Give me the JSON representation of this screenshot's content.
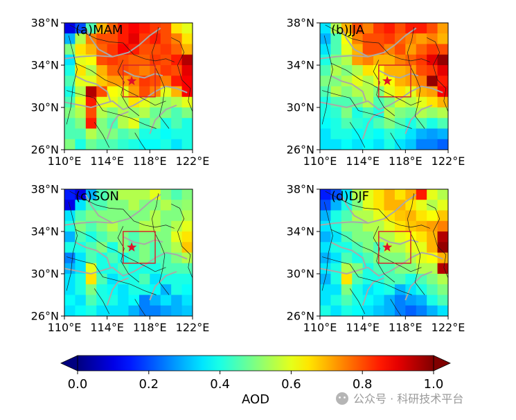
{
  "chart_data": {
    "type": "heatmap",
    "variable": "AOD",
    "colorbar": {
      "label": "AOD",
      "min": 0.0,
      "max": 1.0,
      "ticks": [
        "0.0",
        "0.2",
        "0.4",
        "0.6",
        "0.8",
        "1.0"
      ],
      "colormap": "jet"
    },
    "x_ticks": [
      "110°E",
      "114°E",
      "118°E",
      "122°E"
    ],
    "y_ticks": [
      "38°N",
      "34°N",
      "30°N",
      "26°N"
    ],
    "lon_range": [
      110,
      122
    ],
    "lat_range": [
      26,
      38
    ],
    "grid_resolution_deg": 1,
    "site_marker": {
      "lon": 116.3,
      "lat": 32.5,
      "symbol": "star"
    },
    "study_box": {
      "lon": [
        115.5,
        118.5
      ],
      "lat": [
        31.0,
        34.0
      ]
    },
    "panels": [
      {
        "title": "(a)MAM",
        "aod": [
          [
            0.1,
            0.2,
            0.45,
            0.7,
            0.78,
            0.85,
            0.88,
            0.85,
            0.82,
            0.8,
            0.65,
            0.6
          ],
          [
            0.3,
            0.55,
            0.75,
            0.8,
            0.8,
            0.85,
            0.9,
            0.82,
            0.85,
            0.8,
            0.75,
            0.65
          ],
          [
            0.5,
            0.65,
            0.7,
            0.78,
            0.82,
            0.88,
            0.85,
            0.8,
            0.8,
            0.82,
            0.78,
            0.7
          ],
          [
            0.35,
            0.6,
            0.62,
            0.8,
            0.82,
            0.8,
            0.78,
            0.78,
            0.82,
            0.8,
            0.85,
            0.95
          ],
          [
            0.4,
            0.65,
            0.55,
            0.7,
            0.78,
            0.8,
            0.78,
            0.75,
            0.78,
            0.82,
            0.8,
            0.9
          ],
          [
            0.45,
            0.6,
            0.6,
            0.68,
            0.72,
            0.72,
            0.75,
            0.82,
            0.8,
            0.75,
            0.85,
            0.88
          ],
          [
            0.4,
            0.55,
            0.95,
            0.8,
            0.62,
            0.6,
            0.72,
            0.8,
            0.75,
            0.6,
            0.7,
            0.88
          ],
          [
            0.45,
            0.6,
            0.85,
            0.6,
            0.6,
            0.55,
            0.65,
            0.6,
            0.55,
            0.52,
            0.55,
            0.6
          ],
          [
            0.5,
            0.55,
            0.8,
            0.55,
            0.5,
            0.55,
            0.52,
            0.55,
            0.48,
            0.5,
            0.45,
            0.5
          ],
          [
            0.45,
            0.5,
            0.85,
            0.5,
            0.45,
            0.55,
            0.6,
            0.45,
            0.5,
            0.4,
            0.45,
            0.4
          ],
          [
            0.45,
            0.45,
            0.55,
            0.5,
            0.5,
            0.45,
            0.48,
            0.4,
            0.4,
            0.38,
            0.4,
            0.4
          ],
          [
            0.5,
            0.4,
            0.48,
            0.45,
            0.45,
            0.42,
            0.4,
            0.38,
            0.38,
            0.4,
            0.35,
            0.4
          ]
        ]
      },
      {
        "title": "(b)JJA",
        "aod": [
          [
            0.35,
            0.55,
            0.7,
            0.8,
            0.75,
            0.82,
            0.85,
            0.8,
            0.85,
            0.85,
            0.8,
            0.72
          ],
          [
            0.3,
            0.45,
            0.62,
            0.75,
            0.8,
            0.8,
            0.82,
            0.78,
            0.75,
            0.72,
            0.75,
            0.7
          ],
          [
            0.35,
            0.45,
            0.6,
            0.7,
            0.8,
            0.8,
            0.75,
            0.8,
            0.72,
            0.78,
            0.82,
            0.8
          ],
          [
            0.4,
            0.5,
            0.55,
            0.72,
            0.75,
            0.7,
            0.7,
            0.75,
            0.78,
            0.82,
            0.9,
            0.98
          ],
          [
            0.45,
            0.55,
            0.5,
            0.55,
            0.65,
            0.62,
            0.7,
            0.7,
            0.72,
            0.8,
            0.82,
            0.9
          ],
          [
            0.5,
            0.5,
            0.55,
            0.6,
            0.55,
            0.6,
            0.62,
            0.7,
            0.72,
            0.75,
            0.98,
            0.85
          ],
          [
            0.45,
            0.55,
            0.5,
            0.55,
            0.55,
            0.5,
            0.6,
            0.65,
            0.6,
            0.7,
            0.72,
            0.88
          ],
          [
            0.4,
            0.45,
            0.45,
            0.48,
            0.55,
            0.45,
            0.5,
            0.58,
            0.55,
            0.6,
            0.65,
            0.7
          ],
          [
            0.4,
            0.42,
            0.5,
            0.4,
            0.45,
            0.4,
            0.55,
            0.5,
            0.48,
            0.55,
            0.52,
            0.55
          ],
          [
            0.38,
            0.4,
            0.45,
            0.42,
            0.4,
            0.45,
            0.5,
            0.45,
            0.4,
            0.45,
            0.4,
            0.45
          ],
          [
            0.35,
            0.4,
            0.4,
            0.38,
            0.4,
            0.38,
            0.42,
            0.4,
            0.35,
            0.3,
            0.28,
            0.3
          ],
          [
            0.35,
            0.35,
            0.38,
            0.35,
            0.38,
            0.35,
            0.4,
            0.35,
            0.32,
            0.25,
            0.25,
            0.22
          ]
        ]
      },
      {
        "title": "(c)SON",
        "aod": [
          [
            0.15,
            0.1,
            0.3,
            0.45,
            0.5,
            0.55,
            0.55,
            0.55,
            0.6,
            0.5,
            0.45,
            0.5
          ],
          [
            0.1,
            0.35,
            0.45,
            0.45,
            0.5,
            0.5,
            0.55,
            0.5,
            0.5,
            0.55,
            0.5,
            0.52
          ],
          [
            0.35,
            0.45,
            0.5,
            0.5,
            0.5,
            0.5,
            0.5,
            0.5,
            0.55,
            0.5,
            0.5,
            0.55
          ],
          [
            0.4,
            0.5,
            0.45,
            0.5,
            0.55,
            0.5,
            0.5,
            0.55,
            0.55,
            0.5,
            0.55,
            0.6
          ],
          [
            0.3,
            0.45,
            0.4,
            0.45,
            0.5,
            0.5,
            0.45,
            0.5,
            0.5,
            0.5,
            0.6,
            0.65
          ],
          [
            0.4,
            0.4,
            0.45,
            0.5,
            0.4,
            0.5,
            0.45,
            0.5,
            0.45,
            0.5,
            0.55,
            0.68
          ],
          [
            0.25,
            0.35,
            0.45,
            0.4,
            0.45,
            0.4,
            0.45,
            0.5,
            0.45,
            0.45,
            0.5,
            0.55
          ],
          [
            0.3,
            0.35,
            0.6,
            0.4,
            0.4,
            0.45,
            0.4,
            0.4,
            0.4,
            0.45,
            0.45,
            0.45
          ],
          [
            0.35,
            0.4,
            0.65,
            0.45,
            0.35,
            0.4,
            0.4,
            0.45,
            0.35,
            0.4,
            0.4,
            0.4
          ],
          [
            0.35,
            0.4,
            0.5,
            0.4,
            0.38,
            0.35,
            0.4,
            0.4,
            0.38,
            0.3,
            0.4,
            0.38
          ],
          [
            0.38,
            0.35,
            0.45,
            0.4,
            0.4,
            0.35,
            0.38,
            0.25,
            0.3,
            0.35,
            0.3,
            0.35
          ],
          [
            0.35,
            0.38,
            0.4,
            0.35,
            0.35,
            0.35,
            0.3,
            0.25,
            0.25,
            0.28,
            0.3,
            0.32
          ]
        ]
      },
      {
        "title": "(d)DJF",
        "aod": [
          [
            0.15,
            0.2,
            0.35,
            0.55,
            0.6,
            0.65,
            0.7,
            0.65,
            0.7,
            0.85,
            0.6,
            0.55
          ],
          [
            0.2,
            0.3,
            0.4,
            0.5,
            0.6,
            0.65,
            0.7,
            0.7,
            0.65,
            0.6,
            0.55,
            0.6
          ],
          [
            0.3,
            0.4,
            0.45,
            0.55,
            0.55,
            0.6,
            0.65,
            0.68,
            0.7,
            0.65,
            0.62,
            0.68
          ],
          [
            0.35,
            0.4,
            0.5,
            0.5,
            0.55,
            0.55,
            0.6,
            0.65,
            0.68,
            0.7,
            0.72,
            0.75
          ],
          [
            0.3,
            0.35,
            0.45,
            0.5,
            0.5,
            0.55,
            0.55,
            0.6,
            0.62,
            0.65,
            0.7,
            0.95
          ],
          [
            0.35,
            0.4,
            0.4,
            0.45,
            0.5,
            0.45,
            0.55,
            0.55,
            0.6,
            0.6,
            0.7,
            0.98
          ],
          [
            0.3,
            0.35,
            0.45,
            0.4,
            0.45,
            0.5,
            0.5,
            0.5,
            0.55,
            0.6,
            0.62,
            0.7
          ],
          [
            0.35,
            0.4,
            0.55,
            0.5,
            0.4,
            0.45,
            0.45,
            0.5,
            0.5,
            0.55,
            0.55,
            0.95
          ],
          [
            0.3,
            0.4,
            0.65,
            0.45,
            0.4,
            0.4,
            0.45,
            0.45,
            0.4,
            0.45,
            0.5,
            0.55
          ],
          [
            0.35,
            0.35,
            0.5,
            0.4,
            0.35,
            0.38,
            0.4,
            0.3,
            0.35,
            0.4,
            0.45,
            0.5
          ],
          [
            0.35,
            0.4,
            0.45,
            0.4,
            0.38,
            0.35,
            0.3,
            0.25,
            0.28,
            0.3,
            0.4,
            0.45
          ],
          [
            0.4,
            0.35,
            0.4,
            0.38,
            0.35,
            0.32,
            0.3,
            0.25,
            0.22,
            0.25,
            0.3,
            0.35
          ]
        ]
      }
    ]
  },
  "watermark": "科研技术平台",
  "watermark_prefix": "公众号 ·"
}
